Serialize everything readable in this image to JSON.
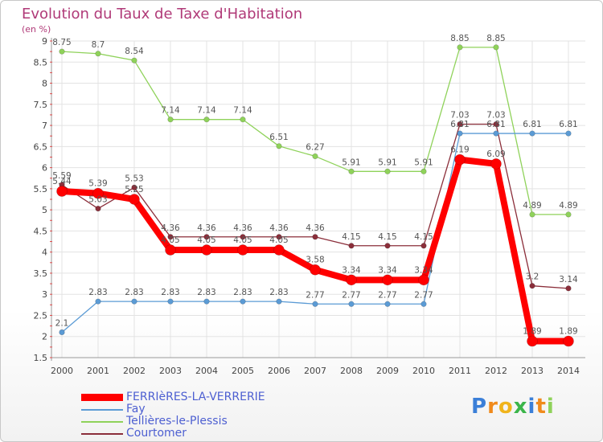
{
  "chart_data": {
    "type": "line",
    "title": "Evolution du Taux de Taxe d'Habitation",
    "subtitle": "(en %)",
    "x": [
      "2000",
      "2001",
      "2002",
      "2003",
      "2004",
      "2005",
      "2006",
      "2007",
      "2008",
      "2009",
      "2010",
      "2011",
      "2012",
      "2013",
      "2014"
    ],
    "ylim": [
      1.5,
      9
    ],
    "yticks": [
      "1.5",
      "2",
      "2.5",
      "3",
      "3.5",
      "4",
      "4.5",
      "5",
      "5.5",
      "6",
      "6.5",
      "7",
      "7.5",
      "8",
      "8.5",
      "9"
    ],
    "series": [
      {
        "name": "FERRIèRES-LA-VERRERIE",
        "color": "#ff0000",
        "values": [
          5.44,
          5.39,
          5.25,
          4.05,
          4.05,
          4.05,
          4.05,
          3.58,
          3.34,
          3.34,
          3.34,
          6.19,
          6.09,
          1.89,
          1.89
        ],
        "labels": [
          "5.44",
          "5.39",
          "5.25",
          "4.05",
          "4.05",
          "4.05",
          "4.05",
          "3.58",
          "3.34",
          "3.34",
          "3.34",
          "6.19",
          "6.09",
          "1.89",
          "1.89"
        ]
      },
      {
        "name": "Fay",
        "color": "#5b9bd5",
        "values": [
          2.1,
          2.83,
          2.83,
          2.83,
          2.83,
          2.83,
          2.83,
          2.77,
          2.77,
          2.77,
          2.77,
          6.81,
          6.81,
          6.81,
          6.81
        ],
        "labels": [
          "2.1",
          "2.83",
          "2.83",
          "2.83",
          "2.83",
          "2.83",
          "2.83",
          "2.77",
          "2.77",
          "2.77",
          "2.77",
          "6.81",
          "6.81",
          "6.81",
          "6.81"
        ]
      },
      {
        "name": "Tellières-le-Plessis",
        "color": "#8fd25a",
        "values": [
          8.75,
          8.7,
          8.54,
          7.14,
          7.14,
          7.14,
          6.51,
          6.27,
          5.91,
          5.91,
          5.91,
          8.85,
          8.85,
          4.89,
          4.89
        ],
        "labels": [
          "8.75",
          "8.7",
          "8.54",
          "7.14",
          "7.14",
          "7.14",
          "6.51",
          "6.27",
          "5.91",
          "5.91",
          "5.91",
          "8.85",
          "8.85",
          "4.89",
          "4.89"
        ]
      },
      {
        "name": "Courtomer",
        "color": "#8b2e3a",
        "values": [
          5.59,
          5.03,
          5.53,
          4.36,
          4.36,
          4.36,
          4.36,
          4.36,
          4.15,
          4.15,
          4.15,
          7.03,
          7.03,
          3.2,
          3.14
        ],
        "labels": [
          "5.59",
          "5.03",
          "5.53",
          "4.36",
          "4.36",
          "4.36",
          "4.36",
          "4.36",
          "4.15",
          "4.15",
          "4.15",
          "7.03",
          "7.03",
          "3.2",
          "3.14"
        ]
      }
    ]
  },
  "legend": {
    "items": [
      "FERRIèRES-LA-VERRERIE",
      "Fay",
      "Tellières-le-Plessis",
      "Courtomer"
    ]
  },
  "logo": {
    "letters": [
      "P",
      "r",
      "o",
      "x",
      "i",
      "t",
      "i"
    ],
    "colors": [
      "#3b7fd8",
      "#f08a1c",
      "#f0b41c",
      "#3bb54a",
      "#3b7fd8",
      "#f08a1c",
      "#8fd25a"
    ]
  }
}
